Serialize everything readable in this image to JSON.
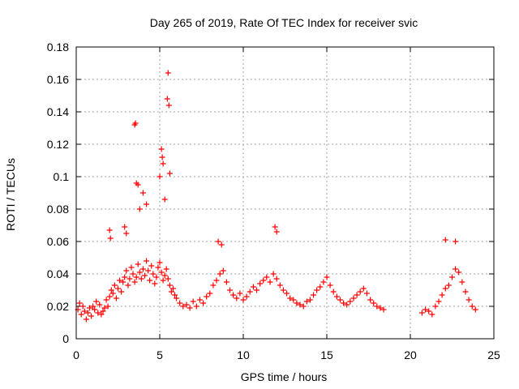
{
  "chart_data": {
    "type": "scatter",
    "title": "Day 265 of 2019, Rate Of TEC Index for receiver svic",
    "xlabel": "GPS time / hours",
    "ylabel": "ROTI / TECUs",
    "xlim": [
      0,
      25
    ],
    "ylim": [
      0,
      0.18
    ],
    "xticks": [
      0,
      5,
      10,
      15,
      20,
      25
    ],
    "xtick_labels": [
      "0",
      "5",
      "10",
      "15",
      "20",
      "25"
    ],
    "yticks": [
      0,
      0.02,
      0.04,
      0.06,
      0.08,
      0.1,
      0.12,
      0.14,
      0.16,
      0.18
    ],
    "ytick_labels": [
      "0",
      "0.02",
      "0.04",
      "0.06",
      "0.08",
      "0.1",
      "0.12",
      "0.14",
      "0.16",
      "0.18"
    ],
    "grid": true,
    "marker": "+",
    "marker_color": "#ff0000",
    "data_gaps_hours": [
      [
        18.6,
        20.6
      ]
    ],
    "series": [
      {
        "name": "ROTI",
        "x": [
          0.1,
          0.2,
          0.3,
          0.4,
          0.5,
          0.6,
          0.7,
          0.8,
          0.9,
          1.0,
          1.1,
          1.2,
          1.3,
          1.4,
          1.5,
          1.6,
          1.7,
          1.8,
          1.9,
          2.0,
          2.1,
          2.2,
          2.3,
          2.4,
          2.5,
          2.6,
          2.7,
          2.8,
          2.9,
          3.0,
          3.1,
          3.2,
          3.3,
          3.4,
          3.5,
          3.6,
          3.7,
          3.8,
          3.9,
          4.0,
          4.1,
          4.2,
          4.3,
          4.4,
          4.5,
          4.6,
          4.7,
          4.8,
          4.9,
          5.0,
          5.1,
          5.2,
          5.3,
          5.4,
          5.5,
          5.6,
          5.7,
          5.8,
          5.9,
          6.0,
          6.2,
          6.4,
          6.6,
          6.8,
          7.0,
          7.2,
          7.4,
          7.6,
          7.8,
          8.0,
          8.2,
          8.4,
          8.6,
          8.8,
          9.0,
          9.2,
          9.4,
          9.6,
          9.8,
          10.0,
          10.2,
          10.4,
          10.6,
          10.8,
          11.0,
          11.2,
          11.4,
          11.6,
          11.8,
          12.0,
          12.2,
          12.4,
          12.6,
          12.8,
          13.0,
          13.2,
          13.4,
          13.6,
          13.8,
          14.0,
          14.2,
          14.4,
          14.6,
          14.8,
          15.0,
          15.2,
          15.4,
          15.6,
          15.8,
          16.0,
          16.2,
          16.4,
          16.6,
          16.8,
          17.0,
          17.2,
          17.4,
          17.6,
          17.8,
          18.0,
          18.2,
          18.4,
          20.7,
          20.9,
          21.1,
          21.3,
          21.5,
          21.7,
          21.9,
          22.1,
          22.3,
          22.5,
          22.7,
          22.9,
          23.1,
          23.3,
          23.5,
          23.7,
          23.9,
          3.5,
          3.55,
          3.6,
          3.7,
          3.8,
          4.0,
          4.2,
          5.0,
          5.1,
          5.15,
          5.2,
          5.3,
          5.45,
          5.5,
          5.55,
          5.6,
          2.0,
          2.05,
          2.9,
          3.0,
          11.9,
          12.0,
          22.1,
          22.7,
          8.5,
          8.7
        ],
        "y": [
          0.018,
          0.022,
          0.015,
          0.02,
          0.017,
          0.012,
          0.016,
          0.019,
          0.014,
          0.02,
          0.018,
          0.023,
          0.016,
          0.021,
          0.015,
          0.017,
          0.019,
          0.024,
          0.02,
          0.026,
          0.03,
          0.028,
          0.033,
          0.025,
          0.031,
          0.036,
          0.029,
          0.035,
          0.038,
          0.042,
          0.033,
          0.037,
          0.044,
          0.04,
          0.035,
          0.038,
          0.046,
          0.041,
          0.037,
          0.043,
          0.039,
          0.048,
          0.042,
          0.036,
          0.045,
          0.04,
          0.034,
          0.038,
          0.044,
          0.047,
          0.041,
          0.036,
          0.039,
          0.043,
          0.037,
          0.033,
          0.029,
          0.031,
          0.027,
          0.025,
          0.022,
          0.02,
          0.021,
          0.019,
          0.023,
          0.02,
          0.024,
          0.022,
          0.026,
          0.028,
          0.033,
          0.036,
          0.04,
          0.042,
          0.035,
          0.03,
          0.027,
          0.025,
          0.028,
          0.024,
          0.026,
          0.029,
          0.032,
          0.03,
          0.034,
          0.036,
          0.038,
          0.035,
          0.04,
          0.037,
          0.033,
          0.03,
          0.028,
          0.025,
          0.024,
          0.022,
          0.021,
          0.02,
          0.023,
          0.024,
          0.027,
          0.03,
          0.032,
          0.035,
          0.038,
          0.033,
          0.029,
          0.026,
          0.024,
          0.022,
          0.021,
          0.023,
          0.025,
          0.027,
          0.029,
          0.031,
          0.028,
          0.024,
          0.022,
          0.02,
          0.019,
          0.018,
          0.016,
          0.018,
          0.017,
          0.015,
          0.02,
          0.023,
          0.027,
          0.031,
          0.033,
          0.038,
          0.043,
          0.041,
          0.035,
          0.029,
          0.024,
          0.02,
          0.018,
          0.132,
          0.133,
          0.096,
          0.095,
          0.08,
          0.09,
          0.083,
          0.1,
          0.117,
          0.112,
          0.108,
          0.086,
          0.148,
          0.164,
          0.144,
          0.102,
          0.067,
          0.062,
          0.069,
          0.065,
          0.069,
          0.066,
          0.061,
          0.06,
          0.06,
          0.058
        ]
      }
    ]
  }
}
